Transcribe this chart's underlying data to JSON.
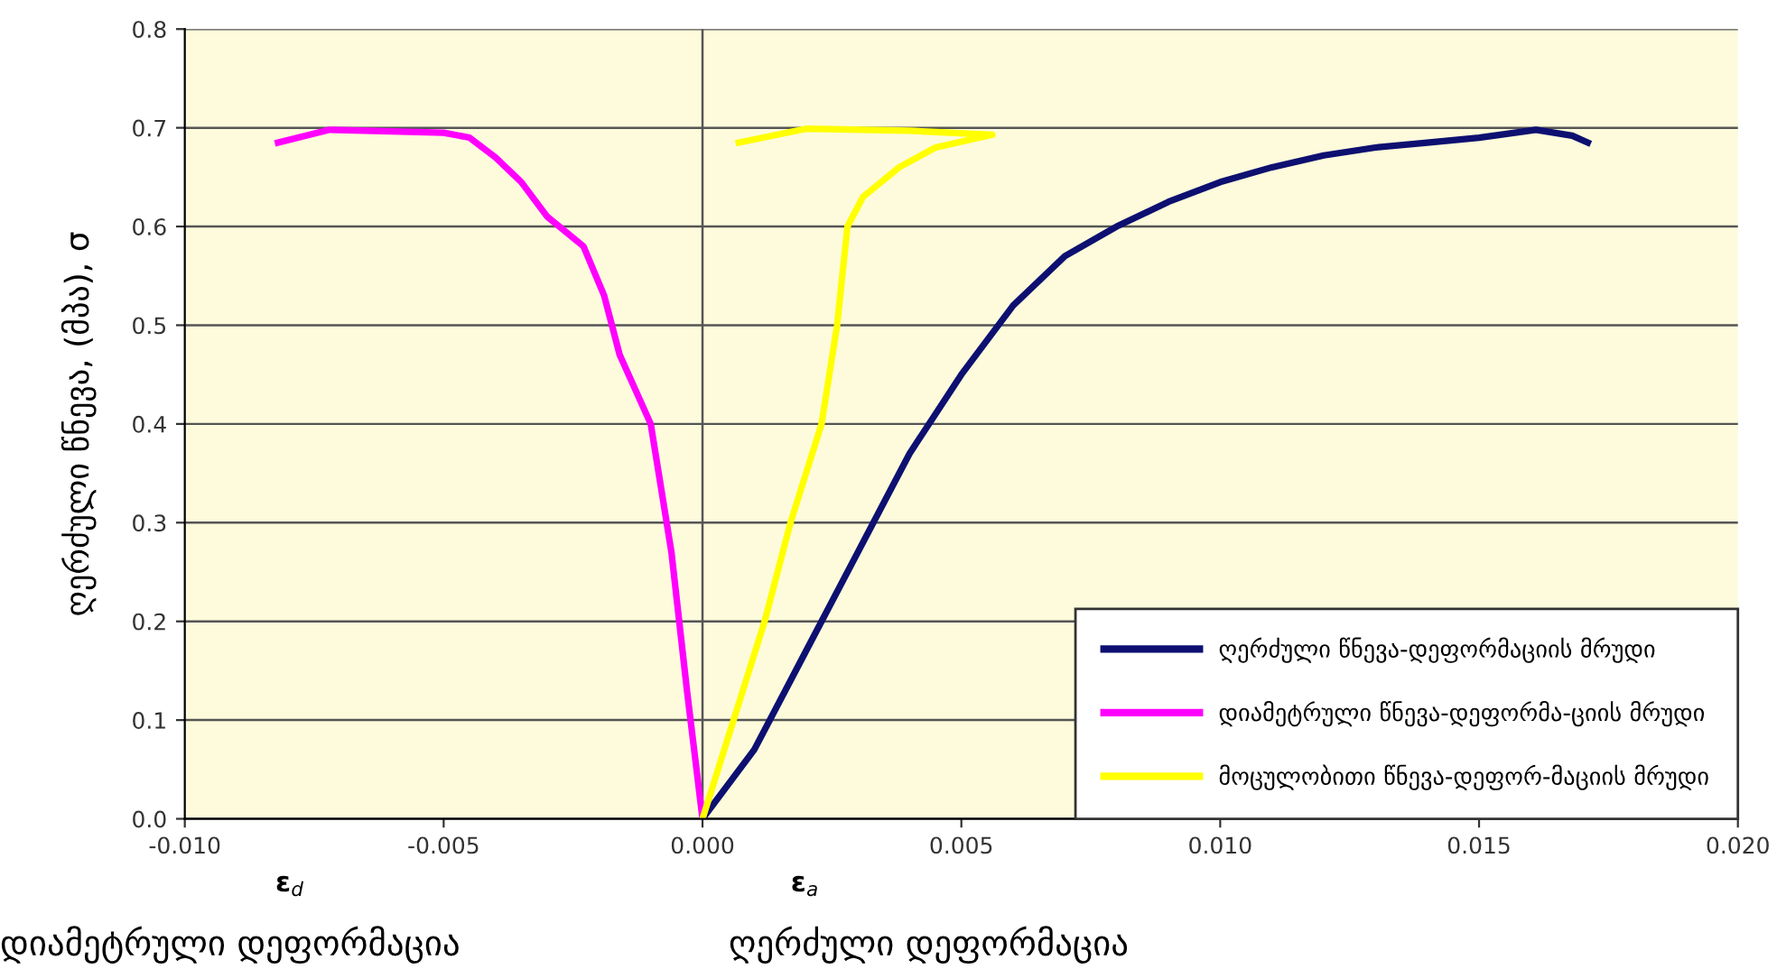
{
  "chart_data": {
    "type": "line",
    "ylabel": "ღერძული წნევა, (მპა), σ",
    "annotations": [
      "ε$_{d}$",
      "ε$_{a}$",
      "დიამეტრული დეფორმაცია",
      "ღერძული დეფორმაცია"
    ],
    "xlim": [
      -0.01,
      0.02
    ],
    "xticks": [
      {
        "value": -0.01,
        "label": "-0.010"
      },
      {
        "value": -0.005,
        "label": "-0.005"
      },
      {
        "value": 0.0,
        "label": "0.000"
      },
      {
        "value": 0.005,
        "label": "0.005"
      },
      {
        "value": 0.01,
        "label": "0.010"
      },
      {
        "value": 0.015,
        "label": "0.015"
      },
      {
        "value": 0.02,
        "label": "0.020"
      }
    ],
    "ylim": [
      0,
      0.8
    ],
    "yticks": [
      {
        "value": 0,
        "label": "0.0"
      },
      0.1,
      0.2,
      0.3,
      0.4,
      0.5,
      0.6,
      0.7,
      0.8
    ],
    "grid": "y",
    "legend": "bottom right",
    "line_style": "solid",
    "marker": "none",
    "ref_lines": [
      {
        "axis": "x",
        "value": 0,
        "color": "#555555"
      }
    ],
    "series": [
      {
        "name": "ღერძული წნევა-დეფორმაციის მრუდი",
        "color": "#0d1070",
        "x": [
          0,
          0.001,
          0.002,
          0.003,
          0.004,
          0.005,
          0.006,
          0.007,
          0.008,
          0.009,
          0.01,
          0.011,
          0.012,
          0.013,
          0.014,
          0.015,
          0.0161,
          0.0168,
          0.0171
        ],
        "values": [
          0,
          0.07,
          0.17,
          0.27,
          0.37,
          0.45,
          0.52,
          0.57,
          0.6,
          0.625,
          0.645,
          0.66,
          0.672,
          0.68,
          0.685,
          0.69,
          0.698,
          0.692,
          0.685
        ]
      },
      {
        "name": "დიამეტრული წნევა-დეფორმა-ციის მრუდი",
        "color": "#ff00ff",
        "x": [
          -0.0082,
          -0.0072,
          -0.005,
          -0.0045,
          -0.004,
          -0.0035,
          -0.003,
          -0.0023,
          -0.0019,
          -0.0016,
          -0.001,
          -0.0006,
          -0.0003,
          0
        ],
        "values": [
          0.685,
          0.698,
          0.695,
          0.69,
          0.67,
          0.645,
          0.61,
          0.58,
          0.53,
          0.47,
          0.4,
          0.27,
          0.13,
          0
        ]
      },
      {
        "name": "მოცულობითი წნევა-დეფორ-მაციის მრუდი",
        "color": "#ffff00",
        "x": [
          0,
          0.0006,
          0.0012,
          0.0017,
          0.0023,
          0.0026,
          0.0028,
          0.0031,
          0.0038,
          0.0045,
          0.0056,
          0.004,
          0.002,
          0.0007
        ],
        "values": [
          0,
          0.1,
          0.2,
          0.3,
          0.4,
          0.5,
          0.6,
          0.63,
          0.66,
          0.68,
          0.693,
          0.697,
          0.699,
          0.685
        ]
      }
    ]
  }
}
